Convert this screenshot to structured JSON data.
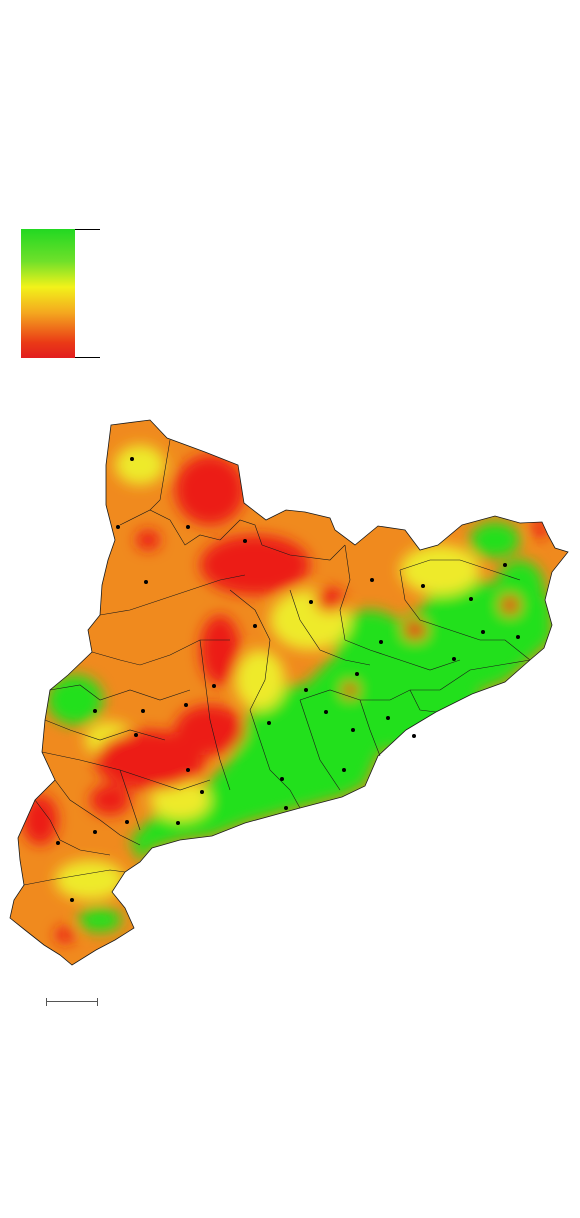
{
  "legend": {
    "colors": [
      "#22d822",
      "#6fe02a",
      "#f2f21a",
      "#f4a71f",
      "#ea3a16",
      "#e21e1e"
    ]
  },
  "map": {
    "palette": {
      "green": "#22e01a",
      "yellow": "#eeea2a",
      "orange": "#f08a1e",
      "red": "#ec1c14",
      "border": "#1a1a1a",
      "marker": "#000000"
    }
  }
}
